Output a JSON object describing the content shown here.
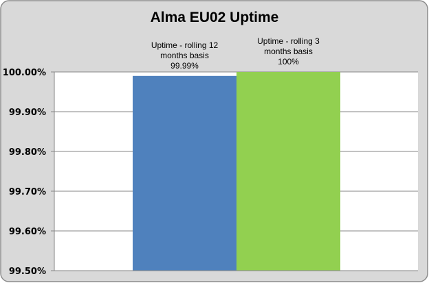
{
  "chart_data": {
    "type": "bar",
    "title": "Alma EU02 Uptime",
    "categories": [
      "Uptime -  rolling 12 months basis",
      "Uptime -  rolling 3 months basis"
    ],
    "values": [
      99.99,
      100.0
    ],
    "data_labels": [
      [
        "Uptime -  rolling 12",
        "months basis",
        "99.99%"
      ],
      [
        "Uptime -  rolling 3",
        "months basis",
        "100%"
      ]
    ],
    "colors": [
      "#4f81bd",
      "#92d050"
    ],
    "ylim": [
      99.5,
      100.0
    ],
    "yticks": [
      "99.50%",
      "99.60%",
      "99.70%",
      "99.80%",
      "99.90%",
      "100.00%"
    ],
    "ytick_values": [
      99.5,
      99.6,
      99.7,
      99.8,
      99.9,
      100.0
    ],
    "grid": true,
    "legend": "none",
    "background": "#d9d9d9",
    "plot_background": "#ffffff"
  }
}
